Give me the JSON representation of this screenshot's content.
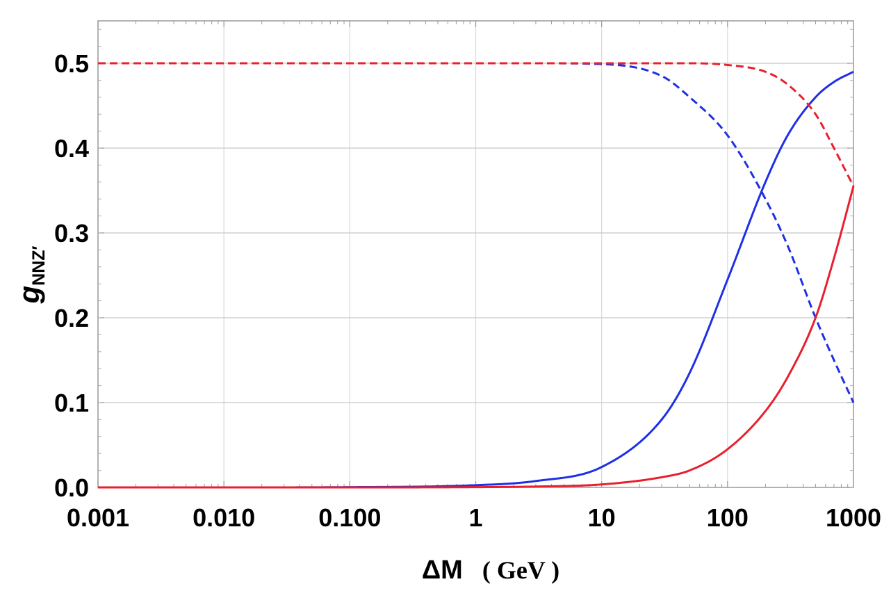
{
  "chart_data": {
    "type": "line",
    "xscale": "log",
    "xlim": [
      0.001,
      1000
    ],
    "ylim": [
      0.0,
      0.55
    ],
    "grid": true,
    "xticks": [
      0.001,
      0.01,
      0.1,
      1,
      10,
      100,
      1000
    ],
    "xtick_labels": [
      "0.001",
      "0.010",
      "0.100",
      "1",
      "10",
      "100",
      "1000"
    ],
    "yticks": [
      0.0,
      0.1,
      0.2,
      0.3,
      0.4,
      0.5
    ],
    "ytick_labels": [
      "0.0",
      "0.1",
      "0.2",
      "0.3",
      "0.4",
      "0.5"
    ],
    "ylabel_main": "g",
    "ylabel_sub": "NNZ′",
    "xlabel_main": "ΔM",
    "xlabel_unit": "( GeV )",
    "x": [
      0.001,
      0.01,
      0.1,
      1,
      3,
      10,
      30,
      50,
      100,
      200,
      300,
      500,
      700,
      1000
    ],
    "series": [
      {
        "color": "#1f2fe6",
        "dash": false,
        "values": [
          0.0,
          0.0,
          0.0003,
          0.0026,
          0.0075,
          0.024,
          0.08,
          0.135,
          0.245,
          0.36,
          0.415,
          0.46,
          0.478,
          0.49
        ]
      },
      {
        "color": "#1f2fe6",
        "dash": true,
        "values": [
          0.5,
          0.5,
          0.5,
          0.5,
          0.5,
          0.499,
          0.485,
          0.46,
          0.415,
          0.34,
          0.285,
          0.2,
          0.15,
          0.1
        ]
      },
      {
        "color": "#e8202e",
        "dash": false,
        "values": [
          0.0,
          0.0,
          0.0,
          0.0003,
          0.001,
          0.0035,
          0.012,
          0.02,
          0.045,
          0.09,
          0.13,
          0.2,
          0.27,
          0.355
        ]
      },
      {
        "color": "#e8202e",
        "dash": true,
        "values": [
          0.5,
          0.5,
          0.5,
          0.5,
          0.5,
          0.5,
          0.5,
          0.5,
          0.498,
          0.49,
          0.475,
          0.44,
          0.4,
          0.355
        ]
      }
    ]
  }
}
